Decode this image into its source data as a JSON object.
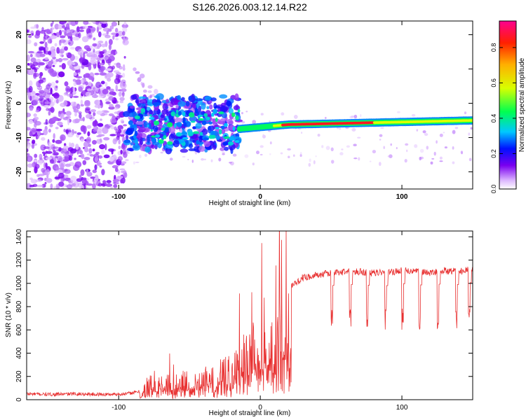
{
  "chart_data": [
    {
      "type": "heatmap",
      "title": "S126.2026.003.12.14.R22",
      "xlabel": "Height of straight line (km)",
      "ylabel": "Frequency (Hz)",
      "xlim": [
        -165,
        150
      ],
      "ylim": [
        -25,
        24
      ],
      "x_ticks": [
        -100,
        0,
        100
      ],
      "y_ticks": [
        20,
        10,
        0,
        -10,
        -20
      ],
      "colorbar": {
        "label": "Normalized spectral amplitude",
        "range": [
          0,
          0.95
        ],
        "ticks": [
          0.0,
          0.2,
          0.4,
          0.6,
          0.8
        ]
      },
      "features": [
        {
          "name": "scattered noise",
          "x": [
            -165,
            -95
          ],
          "y": [
            -25,
            24
          ],
          "amplitude": 0.05
        },
        {
          "name": "fragmented signal",
          "x": [
            -95,
            -15
          ],
          "y": [
            -14,
            2
          ],
          "amplitude": 0.3
        },
        {
          "name": "coherent carrier",
          "x": [
            -15,
            150
          ],
          "y_start": -7.5,
          "y_end": -5,
          "amplitude": 0.9
        }
      ]
    },
    {
      "type": "line",
      "xlabel": "Height of straight line (km)",
      "ylabel": "SNR (10 * v/v)",
      "xlim": [
        -165,
        150
      ],
      "ylim": [
        0,
        1450
      ],
      "x_ticks": [
        -100,
        0,
        100
      ],
      "y_ticks": [
        0,
        200,
        400,
        600,
        800,
        1000,
        1200,
        1400
      ],
      "series": [
        {
          "name": "SNR",
          "color": "#e83030",
          "x": [
            -165,
            -150,
            -130,
            -110,
            -95,
            -85,
            -80,
            -75,
            -70,
            -65,
            -60,
            -55,
            -50,
            -45,
            -40,
            -35,
            -30,
            -25,
            -20,
            -15,
            -10,
            -5,
            0,
            5,
            10,
            12,
            15,
            20,
            25,
            30,
            40,
            50,
            60,
            70,
            80,
            90,
            100,
            110,
            120,
            130,
            140,
            150
          ],
          "values": [
            50,
            45,
            50,
            45,
            50,
            70,
            180,
            250,
            200,
            240,
            150,
            260,
            220,
            280,
            250,
            320,
            300,
            380,
            430,
            480,
            600,
            700,
            680,
            650,
            700,
            760,
            940,
            950,
            1000,
            1050,
            1070,
            1090,
            1100,
            1100,
            1090,
            1090,
            1110,
            1100,
            1090,
            1110,
            1100,
            1120
          ]
        }
      ],
      "dropouts_x": [
        50,
        63,
        75,
        88,
        100,
        112,
        125,
        138,
        147
      ]
    }
  ]
}
